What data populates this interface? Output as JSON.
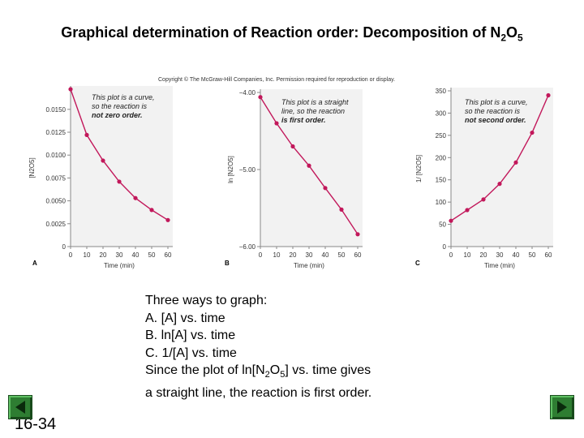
{
  "slide": {
    "title_main": "Graphical determination of Reaction order: Decomposition of N",
    "title_sub1": "2",
    "title_mid": "O",
    "title_sub2": "5",
    "copyright": "Copyright © The McGraw-Hill Companies, Inc. Permission required for reproduction or display.",
    "slide_number": "16-34",
    "text": {
      "line1": "Three ways to graph:",
      "line2": "A.  [A] vs. time",
      "line3": "B.  ln[A] vs. time",
      "line4": "C.  1/[A] vs. time",
      "line5_pre": "Since the plot of ln[N",
      "line5_sub1": "2",
      "line5_mid": "O",
      "line5_sub2": "5",
      "line5_post": "] vs. time gives",
      "line6": "a straight line, the reaction is first order."
    },
    "nav": {
      "prev_icon": "triangle-left-icon",
      "next_icon": "triangle-right-icon",
      "button_color": "#2e7d32"
    }
  },
  "chart_data": [
    {
      "type": "line",
      "panel": "A",
      "x": [
        0,
        10,
        20,
        30,
        40,
        50,
        60
      ],
      "series": [
        {
          "values": [
            0.0172,
            0.0122,
            0.0094,
            0.0071,
            0.0053,
            0.004,
            0.0029
          ]
        }
      ],
      "xlabel": "Time (min)",
      "ylabel": "[N2O5]",
      "xlim": [
        0,
        60
      ],
      "ylim": [
        0,
        0.0172
      ],
      "xticks": [
        "0",
        "10",
        "20",
        "30",
        "40",
        "50",
        "60"
      ],
      "yticks": [
        "0",
        "0.0025",
        "0.0050",
        "0.0075",
        "0.0100",
        "0.0125",
        "0.0150"
      ],
      "ytick_values": [
        0,
        0.0025,
        0.005,
        0.0075,
        0.01,
        0.0125,
        0.015
      ],
      "note": [
        "This plot is a curve,",
        "so the reaction is",
        "not zero order."
      ],
      "color": "#c2185b"
    },
    {
      "type": "line",
      "panel": "B",
      "x": [
        0,
        10,
        20,
        30,
        40,
        50,
        60
      ],
      "series": [
        {
          "values": [
            -4.06,
            -4.4,
            -4.7,
            -4.95,
            -5.24,
            -5.52,
            -5.84
          ]
        }
      ],
      "xlabel": "Time (min)",
      "ylabel": "ln [N2O5]",
      "xlim": [
        0,
        60
      ],
      "ylim": [
        -6.0,
        -4.0
      ],
      "xticks": [
        "0",
        "10",
        "20",
        "30",
        "40",
        "50",
        "60"
      ],
      "yticks": [
        "−4.00",
        "−5.00",
        "−6.00"
      ],
      "ytick_values": [
        -4.0,
        -5.0,
        -6.0
      ],
      "note": [
        "This plot is a straight",
        "line, so the reaction",
        "is first order."
      ],
      "color": "#c2185b"
    },
    {
      "type": "line",
      "panel": "C",
      "x": [
        0,
        10,
        20,
        30,
        40,
        50,
        60
      ],
      "series": [
        {
          "values": [
            58,
            82,
            106,
            141,
            189,
            256,
            340
          ]
        }
      ],
      "xlabel": "Time (min)",
      "ylabel": "1/ [N2O5]",
      "xlim": [
        0,
        60
      ],
      "ylim": [
        0,
        350
      ],
      "xticks": [
        "0",
        "10",
        "20",
        "30",
        "40",
        "50",
        "60"
      ],
      "yticks": [
        "0",
        "50",
        "100",
        "150",
        "200",
        "250",
        "300",
        "350"
      ],
      "ytick_values": [
        0,
        50,
        100,
        150,
        200,
        250,
        300,
        350
      ],
      "note": [
        "This plot is a curve,",
        "so the reaction is",
        "not second order."
      ],
      "color": "#c2185b"
    }
  ]
}
